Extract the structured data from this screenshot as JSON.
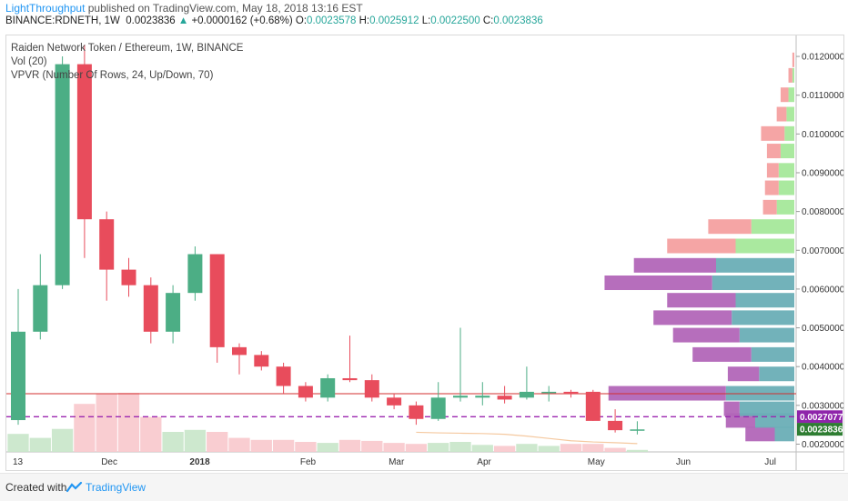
{
  "header": {
    "user": "LightThroughput",
    "published": "published on TradingView.com, May 18, 2018 13:16 EST",
    "symbol": "BINANCE:RDNETH, 1W",
    "last": "0.0023836",
    "change_arrow": "▲",
    "change": "+0.0000162 (+0.68%)",
    "o_label": "O:",
    "o_val": "0.0023578",
    "h_label": "H:",
    "h_val": "0.0025912",
    "l_label": "L:",
    "l_val": "0.0022500",
    "c_label": "C:",
    "c_val": "0.0023836"
  },
  "legend": {
    "title": "Raiden Network Token / Ethereum, 1W, BINANCE",
    "vol": "Vol (20)",
    "vpvr": "VPVR (Number Of Rows, 24, Up/Down, 70)"
  },
  "footer": {
    "created": "Created with",
    "brand": "TradingView"
  },
  "colors": {
    "up": "#4cae85",
    "down": "#e84c5c",
    "vol_up": "#c8e6c9",
    "vol_down": "#f8c8cc",
    "ma": "#f5c9a0",
    "level": "#d32f2f",
    "dashed": "#9c27b0",
    "price_tag_last": "#2e7d32",
    "price_tag_dash": "#8e24aa"
  },
  "chart_data": {
    "type": "candlestick",
    "title": "Raiden Network Token / Ethereum, 1W, BINANCE",
    "y_axis": {
      "min": 0.0018,
      "max": 0.0124,
      "ticks": [
        "0.0020000",
        "0.0030000",
        "0.0040000",
        "0.0050000",
        "0.0060000",
        "0.0070000",
        "0.0080000",
        "0.0090000",
        "0.0100000",
        "0.0110000",
        "0.0120000"
      ]
    },
    "x_axis_labels": [
      {
        "label": "13",
        "index": 0
      },
      {
        "label": "Dec",
        "index": 4
      },
      {
        "label": "2018",
        "index": 8
      },
      {
        "label": "Feb",
        "index": 13
      },
      {
        "label": "Mar",
        "index": 17
      },
      {
        "label": "Apr",
        "index": 21
      },
      {
        "label": "May",
        "index": 26
      },
      {
        "label": "Jun",
        "index": 30
      },
      {
        "label": "Jul",
        "index": 34
      }
    ],
    "candles": [
      {
        "o": 0.00262,
        "h": 0.006,
        "l": 0.0025,
        "c": 0.0049,
        "v": 0.18
      },
      {
        "o": 0.0049,
        "h": 0.0069,
        "l": 0.0047,
        "c": 0.0061,
        "v": 0.14
      },
      {
        "o": 0.0061,
        "h": 0.012,
        "l": 0.006,
        "c": 0.0118,
        "v": 0.23
      },
      {
        "o": 0.0118,
        "h": 0.0123,
        "l": 0.0068,
        "c": 0.0078,
        "v": 0.48
      },
      {
        "o": 0.0078,
        "h": 0.008,
        "l": 0.0057,
        "c": 0.0065,
        "v": 0.58
      },
      {
        "o": 0.0065,
        "h": 0.0068,
        "l": 0.0058,
        "c": 0.0061,
        "v": 0.59
      },
      {
        "o": 0.0061,
        "h": 0.0063,
        "l": 0.0046,
        "c": 0.0049,
        "v": 0.35
      },
      {
        "o": 0.0049,
        "h": 0.0061,
        "l": 0.0046,
        "c": 0.0059,
        "v": 0.2
      },
      {
        "o": 0.0059,
        "h": 0.0071,
        "l": 0.0057,
        "c": 0.0069,
        "v": 0.22
      },
      {
        "o": 0.0069,
        "h": 0.0069,
        "l": 0.0041,
        "c": 0.0045,
        "v": 0.2
      },
      {
        "o": 0.0045,
        "h": 0.0046,
        "l": 0.0038,
        "c": 0.0043,
        "v": 0.14
      },
      {
        "o": 0.0043,
        "h": 0.0044,
        "l": 0.0039,
        "c": 0.004,
        "v": 0.12
      },
      {
        "o": 0.004,
        "h": 0.0041,
        "l": 0.0033,
        "c": 0.0035,
        "v": 0.12
      },
      {
        "o": 0.0035,
        "h": 0.0036,
        "l": 0.0031,
        "c": 0.0032,
        "v": 0.1
      },
      {
        "o": 0.0032,
        "h": 0.0038,
        "l": 0.0031,
        "c": 0.0037,
        "v": 0.09
      },
      {
        "o": 0.0037,
        "h": 0.0048,
        "l": 0.0036,
        "c": 0.00365,
        "v": 0.12
      },
      {
        "o": 0.00365,
        "h": 0.0038,
        "l": 0.0031,
        "c": 0.0032,
        "v": 0.11
      },
      {
        "o": 0.0032,
        "h": 0.0033,
        "l": 0.0029,
        "c": 0.003,
        "v": 0.09
      },
      {
        "o": 0.003,
        "h": 0.0031,
        "l": 0.0025,
        "c": 0.00265,
        "v": 0.08
      },
      {
        "o": 0.00265,
        "h": 0.0036,
        "l": 0.0026,
        "c": 0.0032,
        "v": 0.09
      },
      {
        "o": 0.0032,
        "h": 0.005,
        "l": 0.0031,
        "c": 0.00325,
        "v": 0.1
      },
      {
        "o": 0.0032,
        "h": 0.0036,
        "l": 0.003,
        "c": 0.00325,
        "v": 0.07
      },
      {
        "o": 0.00325,
        "h": 0.0035,
        "l": 0.00305,
        "c": 0.00315,
        "v": 0.06
      },
      {
        "o": 0.0032,
        "h": 0.004,
        "l": 0.00315,
        "c": 0.00335,
        "v": 0.08
      },
      {
        "o": 0.00335,
        "h": 0.0035,
        "l": 0.0031,
        "c": 0.00335,
        "v": 0.06
      },
      {
        "o": 0.00335,
        "h": 0.0034,
        "l": 0.0032,
        "c": 0.0033,
        "v": 0.08
      },
      {
        "o": 0.00335,
        "h": 0.0034,
        "l": 0.0026,
        "c": 0.0026,
        "v": 0.08
      },
      {
        "o": 0.0026,
        "h": 0.0029,
        "l": 0.0023,
        "c": 0.00236,
        "v": 0.04
      },
      {
        "o": 0.00236,
        "h": 0.00259,
        "l": 0.00225,
        "c": 0.00238,
        "v": 0.02
      }
    ],
    "horizontal_lines": [
      {
        "price": 0.0033,
        "style": "solid",
        "color": "#d32f2f"
      },
      {
        "price": 0.0027077,
        "style": "dashed",
        "color": "#9c27b0",
        "label": "0.0027077"
      }
    ],
    "last_price_label": "0.0023836",
    "volume_profile_rows": [
      {
        "price": 0.00225,
        "up": 0.1,
        "down": 0.15
      },
      {
        "price": 0.0026,
        "up": 0.2,
        "down": 0.15
      },
      {
        "price": 0.0029,
        "up": 0.28,
        "down": 0.08
      },
      {
        "price": 0.0033,
        "up": 0.35,
        "down": 0.6
      },
      {
        "price": 0.0038,
        "up": 0.18,
        "down": 0.16
      },
      {
        "price": 0.0043,
        "up": 0.22,
        "down": 0.3
      },
      {
        "price": 0.0048,
        "up": 0.28,
        "down": 0.34
      },
      {
        "price": 0.00525,
        "up": 0.32,
        "down": 0.4
      },
      {
        "price": 0.0057,
        "up": 0.3,
        "down": 0.35
      },
      {
        "price": 0.00615,
        "up": 0.42,
        "down": 0.55
      },
      {
        "price": 0.0066,
        "up": 0.4,
        "down": 0.42
      },
      {
        "price": 0.0071,
        "up": 0.3,
        "down": 0.35
      },
      {
        "price": 0.0076,
        "up": 0.22,
        "down": 0.22
      },
      {
        "price": 0.0081,
        "up": 0.09,
        "down": 0.07
      },
      {
        "price": 0.0086,
        "up": 0.08,
        "down": 0.07
      },
      {
        "price": 0.00905,
        "up": 0.08,
        "down": 0.06
      },
      {
        "price": 0.00955,
        "up": 0.07,
        "down": 0.07
      },
      {
        "price": 0.01,
        "up": 0.05,
        "down": 0.12
      },
      {
        "price": 0.0105,
        "up": 0.04,
        "down": 0.05
      },
      {
        "price": 0.011,
        "up": 0.03,
        "down": 0.04
      },
      {
        "price": 0.0115,
        "up": 0.01,
        "down": 0.02
      },
      {
        "price": 0.0119,
        "up": 0.0,
        "down": 0.01
      }
    ]
  }
}
